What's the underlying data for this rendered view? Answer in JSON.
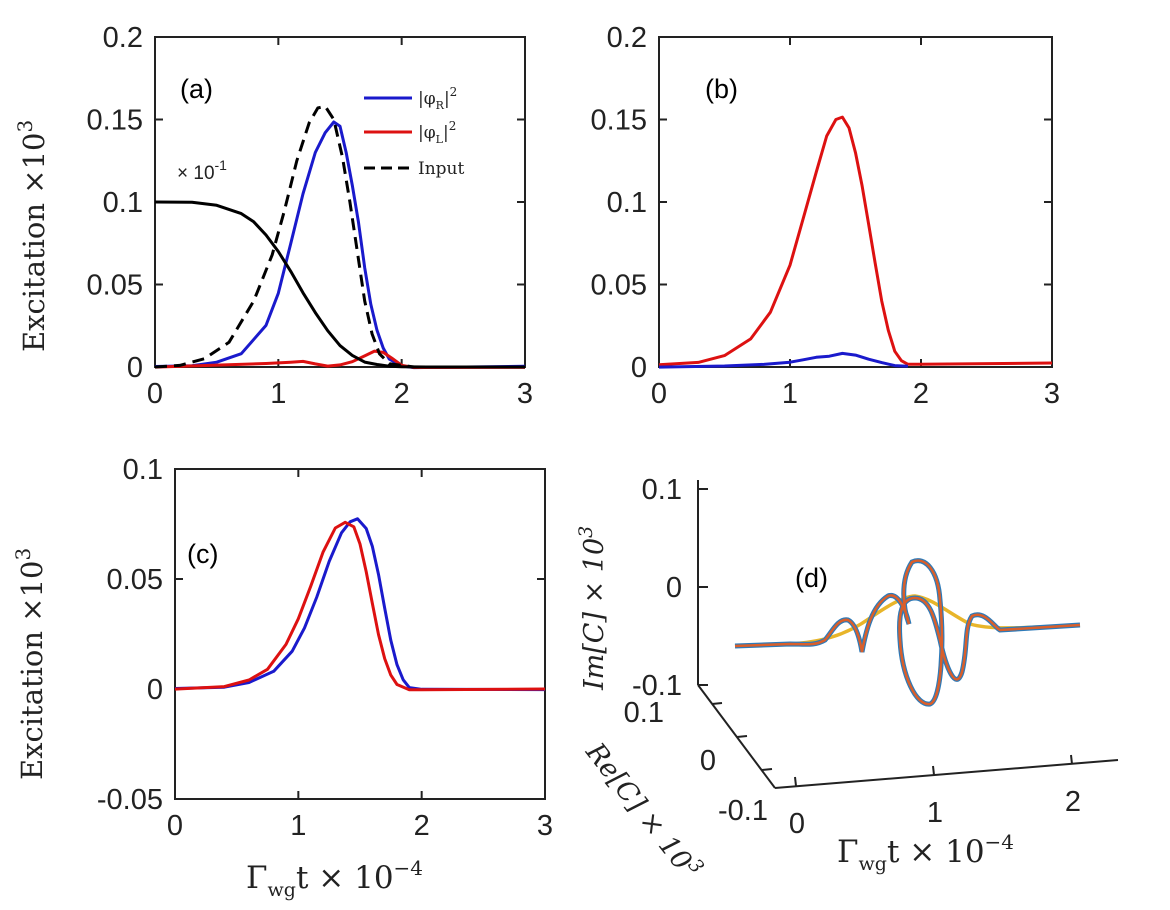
{
  "chart_data": [
    {
      "type": "line",
      "panel_label": "(a)",
      "ylabel": "Excitation ×10",
      "ylabel_exponent": "3",
      "xlim": [
        0,
        3
      ],
      "ylim": [
        0,
        0.2
      ],
      "xticks": [
        "0",
        "1",
        "2",
        "3"
      ],
      "yticks": [
        "0",
        "0.05",
        "0.1",
        "0.15",
        "0.2"
      ],
      "annotation": "× 10",
      "annotation_exponent": "-1",
      "legend": {
        "position": "top-right",
        "entries": [
          {
            "base": "|φ",
            "sub": "R",
            "tail": "|",
            "sup": "2",
            "color": "#1a1acc"
          },
          {
            "base": "|φ",
            "sub": "L",
            "tail": "|",
            "sup": "2",
            "color": "#dd1111"
          },
          {
            "base": "Input",
            "sub": "",
            "tail": "",
            "sup": "",
            "color": "#000000"
          }
        ]
      },
      "series": [
        {
          "name": "|φR|^2",
          "color": "#1a1acc",
          "style": "solid",
          "x": [
            0,
            0.3,
            0.5,
            0.7,
            0.9,
            1.0,
            1.1,
            1.2,
            1.3,
            1.38,
            1.45,
            1.5,
            1.55,
            1.6,
            1.65,
            1.7,
            1.75,
            1.8,
            1.85,
            1.9,
            2.0,
            2.1,
            3.0
          ],
          "y": [
            0,
            0.001,
            0.003,
            0.008,
            0.025,
            0.045,
            0.075,
            0.105,
            0.13,
            0.142,
            0.148,
            0.146,
            0.13,
            0.11,
            0.088,
            0.06,
            0.038,
            0.022,
            0.012,
            0.005,
            0.001,
            0,
            0
          ]
        },
        {
          "name": "|φL|^2",
          "color": "#dd1111",
          "style": "solid",
          "x": [
            0,
            0.5,
            0.9,
            1.1,
            1.2,
            1.3,
            1.4,
            1.5,
            1.6,
            1.7,
            1.78,
            1.85,
            1.92,
            2.0,
            2.1,
            3.0
          ],
          "y": [
            0,
            0.001,
            0.002,
            0.003,
            0.003,
            0.002,
            0.001,
            0.001,
            0.003,
            0.007,
            0.01,
            0.009,
            0.005,
            0.001,
            0,
            0
          ]
        },
        {
          "name": "Input",
          "color": "#000000",
          "style": "dashed",
          "x": [
            0,
            0.2,
            0.4,
            0.6,
            0.8,
            0.95,
            1.05,
            1.15,
            1.25,
            1.32,
            1.38,
            1.45,
            1.52,
            1.58,
            1.64,
            1.7,
            1.76,
            1.82,
            1.9,
            2.0,
            2.1,
            3.0
          ],
          "y": [
            0,
            0.001,
            0.005,
            0.015,
            0.04,
            0.068,
            0.095,
            0.125,
            0.148,
            0.157,
            0.158,
            0.15,
            0.127,
            0.1,
            0.07,
            0.04,
            0.02,
            0.008,
            0.002,
            0.001,
            0,
            0
          ]
        },
        {
          "name": "× 10^-1 curve",
          "color": "#000000",
          "style": "solid",
          "x": [
            0,
            0.3,
            0.5,
            0.7,
            0.8,
            0.9,
            1.0,
            1.1,
            1.2,
            1.3,
            1.4,
            1.5,
            1.6,
            1.7,
            1.8,
            1.9,
            2.0,
            2.2,
            3.0
          ],
          "y": [
            0.1,
            0.0998,
            0.098,
            0.093,
            0.088,
            0.08,
            0.07,
            0.058,
            0.045,
            0.033,
            0.022,
            0.013,
            0.007,
            0.003,
            0.0015,
            0.0005,
            0.0002,
            0,
            0
          ]
        }
      ]
    },
    {
      "type": "line",
      "panel_label": "(b)",
      "xlim": [
        0,
        3
      ],
      "ylim": [
        0,
        0.2
      ],
      "xticks": [
        "0",
        "1",
        "2",
        "3"
      ],
      "yticks": [
        "0",
        "0.05",
        "0.1",
        "0.15",
        "0.2"
      ],
      "series": [
        {
          "name": "red",
          "color": "#dd1111",
          "style": "solid",
          "x": [
            0,
            0.3,
            0.5,
            0.7,
            0.85,
            1.0,
            1.1,
            1.2,
            1.28,
            1.35,
            1.4,
            1.45,
            1.5,
            1.55,
            1.6,
            1.65,
            1.7,
            1.75,
            1.8,
            1.85,
            1.9,
            2.0,
            3.0
          ],
          "y": [
            0.001,
            0.003,
            0.007,
            0.017,
            0.033,
            0.062,
            0.09,
            0.118,
            0.14,
            0.15,
            0.151,
            0.145,
            0.13,
            0.11,
            0.087,
            0.063,
            0.04,
            0.022,
            0.01,
            0.004,
            0.002,
            0.002,
            0.002
          ]
        },
        {
          "name": "blue",
          "color": "#1a1acc",
          "style": "solid",
          "x": [
            0,
            0.5,
            0.8,
            1.0,
            1.1,
            1.2,
            1.3,
            1.4,
            1.5,
            1.6,
            1.7,
            1.8,
            1.9
          ],
          "y": [
            0,
            0.0005,
            0.0015,
            0.003,
            0.004,
            0.006,
            0.007,
            0.008,
            0.007,
            0.005,
            0.003,
            0.001,
            0
          ]
        }
      ]
    },
    {
      "type": "line",
      "panel_label": "(c)",
      "ylabel": "Excitation ×10",
      "ylabel_exponent": "3",
      "xlabel_main": "Γ",
      "xlabel_sub": "wg",
      "xlabel_rest": "t × 10",
      "xlabel_exponent": "−4",
      "xlim": [
        0,
        3
      ],
      "ylim": [
        -0.05,
        0.1
      ],
      "xticks": [
        "0",
        "1",
        "2",
        "3"
      ],
      "yticks": [
        "-0.05",
        "0",
        "0.05",
        "0.1"
      ],
      "series": [
        {
          "name": "blue",
          "color": "#1a1acc",
          "style": "solid",
          "x": [
            0,
            0.4,
            0.6,
            0.8,
            0.95,
            1.05,
            1.15,
            1.25,
            1.35,
            1.42,
            1.48,
            1.55,
            1.6,
            1.65,
            1.7,
            1.75,
            1.8,
            1.85,
            1.9,
            2.0,
            3.0
          ],
          "y": [
            0,
            0.001,
            0.003,
            0.008,
            0.017,
            0.028,
            0.042,
            0.058,
            0.071,
            0.076,
            0.077,
            0.073,
            0.065,
            0.052,
            0.037,
            0.022,
            0.011,
            0.004,
            0.001,
            0,
            0
          ]
        },
        {
          "name": "red",
          "color": "#dd1111",
          "style": "solid",
          "x": [
            0,
            0.4,
            0.6,
            0.75,
            0.9,
            1.0,
            1.1,
            1.2,
            1.3,
            1.38,
            1.45,
            1.5,
            1.55,
            1.6,
            1.65,
            1.7,
            1.75,
            1.8,
            1.9,
            2.0,
            3.0
          ],
          "y": [
            0,
            0.001,
            0.004,
            0.009,
            0.02,
            0.032,
            0.047,
            0.062,
            0.073,
            0.076,
            0.074,
            0.066,
            0.053,
            0.039,
            0.025,
            0.014,
            0.006,
            0.002,
            0,
            0,
            0
          ]
        }
      ]
    },
    {
      "type": "line",
      "panel_label": "(d)",
      "zlabel": "Im[C] × 10",
      "zlabel_exponent": "3",
      "ylabel": "Re[C] × 10",
      "ylabel_exponent": "3",
      "xlabel_main": "Γ",
      "xlabel_sub": "wg",
      "xlabel_rest": "t × 10",
      "xlabel_exponent": "−4",
      "xticks": [
        "0",
        "1",
        "2"
      ],
      "yticks": [
        "0.1",
        "0",
        "-0.1"
      ],
      "zticks": [
        "0.1",
        "0",
        "-0.1"
      ],
      "series": [
        {
          "name": "blue spiral",
          "color": "#2e7ab8"
        },
        {
          "name": "orange spiral",
          "color": "#d95f2b"
        },
        {
          "name": "yellow envelope",
          "color": "#e8b52a"
        }
      ]
    }
  ]
}
